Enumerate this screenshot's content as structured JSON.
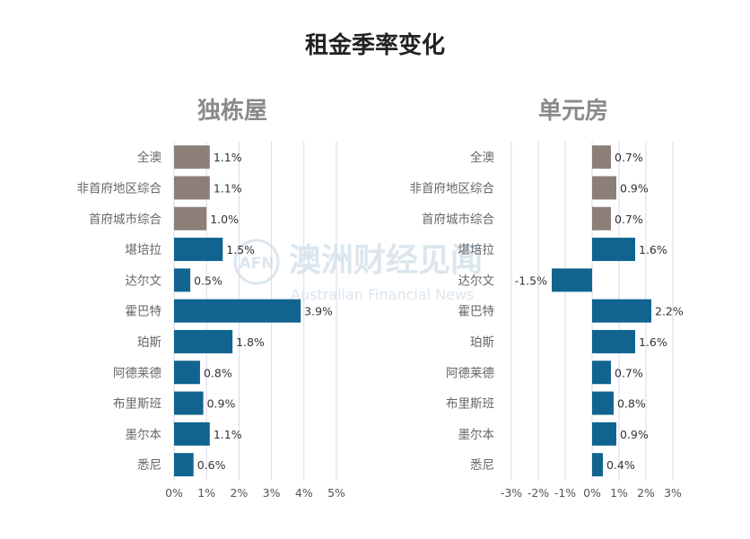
{
  "title": "租金季率变化",
  "colors": {
    "aggregate_bar": "#8c7f78",
    "city_bar": "#11648f",
    "grid": "#d9d9ee",
    "axis_text": "#555555",
    "category_text": "#666666",
    "panel_title": "#8a8a8a",
    "watermark": "#dbe6ee"
  },
  "watermark": {
    "text_cn": "澳洲财经见闻",
    "text_en": "Australian Financial News",
    "logo_letters": "AFN"
  },
  "chart_data": [
    {
      "type": "bar",
      "orientation": "horizontal",
      "title": "独栋屋",
      "categories": [
        "全澳",
        "非首府地区综合",
        "首府城市综合",
        "堪培拉",
        "达尔文",
        "霍巴特",
        "珀斯",
        "阿德莱德",
        "布里斯班",
        "墨尔本",
        "悉尼"
      ],
      "values": [
        1.1,
        1.1,
        1.0,
        1.5,
        0.5,
        3.9,
        1.8,
        0.8,
        0.9,
        1.1,
        0.6
      ],
      "labels": [
        "1.1%",
        "1.1%",
        "1.0%",
        "1.5%",
        "0.5%",
        "3.9%",
        "1.8%",
        "0.8%",
        "0.9%",
        "1.1%",
        "0.6%"
      ],
      "aggregate_count": 3,
      "xlim": [
        0,
        5
      ],
      "ticks": [
        0,
        1,
        2,
        3,
        4,
        5
      ],
      "tick_labels": [
        "0%",
        "1%",
        "2%",
        "3%",
        "4%",
        "5%"
      ]
    },
    {
      "type": "bar",
      "orientation": "horizontal",
      "title": "单元房",
      "categories": [
        "全澳",
        "非首府地区综合",
        "首府城市综合",
        "堪培拉",
        "达尔文",
        "霍巴特",
        "珀斯",
        "阿德莱德",
        "布里斯班",
        "墨尔本",
        "悉尼"
      ],
      "values": [
        0.7,
        0.9,
        0.7,
        1.6,
        -1.5,
        2.2,
        1.6,
        0.7,
        0.8,
        0.9,
        0.4
      ],
      "labels": [
        "0.7%",
        "0.9%",
        "0.7%",
        "1.6%",
        "-1.5%",
        "2.2%",
        "1.6%",
        "0.7%",
        "0.8%",
        "0.9%",
        "0.4%"
      ],
      "aggregate_count": 3,
      "xlim": [
        -3,
        3
      ],
      "ticks": [
        -3,
        -2,
        -1,
        0,
        1,
        2,
        3
      ],
      "tick_labels": [
        "-3%",
        "-2%",
        "-1%",
        "0%",
        "1%",
        "2%",
        "3%"
      ]
    }
  ]
}
